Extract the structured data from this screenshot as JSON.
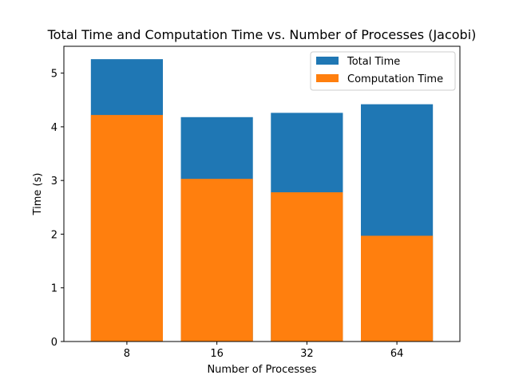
{
  "chart_data": {
    "type": "bar",
    "title": "Total Time and Computation Time vs. Number of Processes (Jacobi)",
    "xlabel": "Number of Processes",
    "ylabel": "Time (s)",
    "categories": [
      "8",
      "16",
      "32",
      "64"
    ],
    "series": [
      {
        "name": "Total Time",
        "values": [
          5.26,
          4.18,
          4.26,
          4.42
        ],
        "color": "#1f77b4"
      },
      {
        "name": "Computation Time",
        "values": [
          4.22,
          3.03,
          2.78,
          1.97
        ],
        "color": "#ff7f0e"
      }
    ],
    "ylim": [
      0,
      5.5
    ],
    "yticks": [
      0,
      1,
      2,
      3,
      4,
      5
    ],
    "grid": false,
    "legend_position": "top-right",
    "overlay": true
  }
}
